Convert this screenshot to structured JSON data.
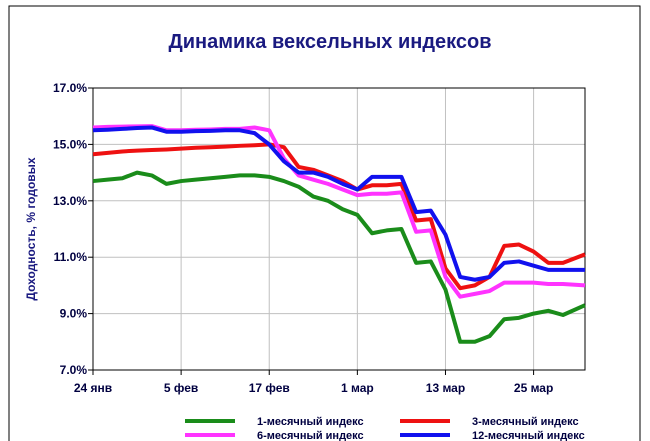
{
  "chart_data": {
    "type": "line",
    "title": "Динамика вексельных индексов",
    "y_label": "Доходность, % годовых",
    "x": [
      0,
      2,
      4,
      6,
      8,
      10,
      12,
      14,
      16,
      18,
      20,
      22,
      24,
      26,
      28,
      30,
      32,
      34,
      36,
      38,
      40,
      42,
      44,
      46,
      48,
      50,
      52,
      54,
      56,
      58,
      60,
      62,
      64,
      67
    ],
    "xlim": [
      0,
      67
    ],
    "xticks": [
      {
        "value": 0,
        "label": "24 янв"
      },
      {
        "value": 12,
        "label": "5 фев"
      },
      {
        "value": 24,
        "label": "17 фев"
      },
      {
        "value": 36,
        "label": "1 мар"
      },
      {
        "value": 48,
        "label": "13 мар"
      },
      {
        "value": 60,
        "label": "25 мар"
      }
    ],
    "ylim": [
      7,
      17
    ],
    "yticks": [
      {
        "value": 7,
        "label": "7.0%"
      },
      {
        "value": 9,
        "label": "9.0%"
      },
      {
        "value": 11,
        "label": "11.0%"
      },
      {
        "value": 13,
        "label": "13.0%"
      },
      {
        "value": 15,
        "label": "15.0%"
      },
      {
        "value": 17,
        "label": "17.0%"
      }
    ],
    "grid": true,
    "legend": "bottom",
    "series": [
      {
        "name": "1-месячный индекс",
        "color": "#1a8c1a",
        "values": [
          13.7,
          13.75,
          13.8,
          14.0,
          13.9,
          13.6,
          13.7,
          13.75,
          13.8,
          13.85,
          13.9,
          13.9,
          13.85,
          13.7,
          13.5,
          13.15,
          13.0,
          12.7,
          12.5,
          11.85,
          11.95,
          12.0,
          10.8,
          10.85,
          9.85,
          8.0,
          8.0,
          8.2,
          8.8,
          8.85,
          9.0,
          9.1,
          8.95,
          9.3
        ]
      },
      {
        "name": "3-месячный индекс",
        "color": "#ee1111",
        "values": [
          14.65,
          14.7,
          14.75,
          14.78,
          14.8,
          14.82,
          14.85,
          14.88,
          14.9,
          14.92,
          14.95,
          14.97,
          15.0,
          14.9,
          14.2,
          14.1,
          13.9,
          13.7,
          13.4,
          13.55,
          13.55,
          13.6,
          12.3,
          12.35,
          10.6,
          9.9,
          10.0,
          10.3,
          11.4,
          11.45,
          11.2,
          10.8,
          10.8,
          11.1
        ]
      },
      {
        "name": "6-месячный индекс",
        "color": "#ff33ff",
        "values": [
          15.6,
          15.62,
          15.63,
          15.64,
          15.65,
          15.5,
          15.5,
          15.52,
          15.53,
          15.55,
          15.55,
          15.6,
          15.5,
          14.5,
          13.9,
          13.75,
          13.6,
          13.4,
          13.2,
          13.25,
          13.25,
          13.3,
          11.9,
          11.95,
          10.3,
          9.6,
          9.7,
          9.8,
          10.1,
          10.1,
          10.1,
          10.05,
          10.05,
          10.0
        ]
      },
      {
        "name": "12-месячный индекс",
        "color": "#1111ee",
        "values": [
          15.5,
          15.52,
          15.55,
          15.58,
          15.6,
          15.45,
          15.45,
          15.47,
          15.48,
          15.5,
          15.5,
          15.4,
          15.0,
          14.4,
          14.0,
          14.0,
          13.85,
          13.6,
          13.4,
          13.85,
          13.85,
          13.85,
          12.6,
          12.65,
          11.8,
          10.3,
          10.2,
          10.3,
          10.8,
          10.85,
          10.7,
          10.55,
          10.55,
          10.55
        ]
      }
    ]
  }
}
